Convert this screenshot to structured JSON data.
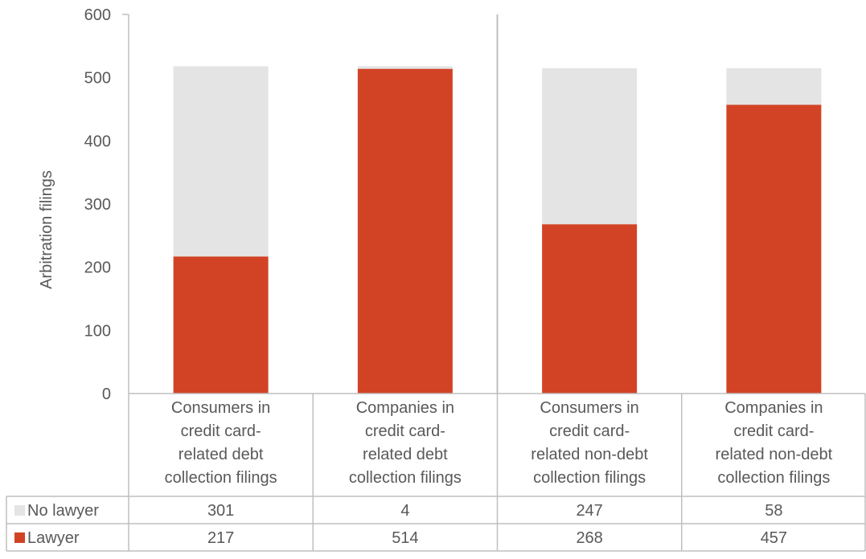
{
  "chart_data": {
    "type": "bar",
    "stacked": true,
    "ylabel": "Arbitration filings",
    "ylim": [
      0,
      600
    ],
    "yticks": [
      0,
      100,
      200,
      300,
      400,
      500,
      600
    ],
    "grid": false,
    "legend": "data-table-left",
    "categories": [
      [
        "Consumers in",
        "credit card-",
        "related debt",
        "collection filings"
      ],
      [
        "Companies in",
        "credit card-",
        "related debt",
        "collection filings"
      ],
      [
        "Consumers in",
        "credit card-",
        "related non-debt",
        "collection filings"
      ],
      [
        "Companies in",
        "credit card-",
        "related non-debt",
        "collection filings"
      ]
    ],
    "series": [
      {
        "name": "Lawyer",
        "color": "#d24325",
        "values": [
          217,
          514,
          268,
          457
        ]
      },
      {
        "name": "No lawyer",
        "color": "#e4e4e4",
        "values": [
          301,
          4,
          247,
          58
        ]
      }
    ],
    "separator_after_category": 1
  }
}
